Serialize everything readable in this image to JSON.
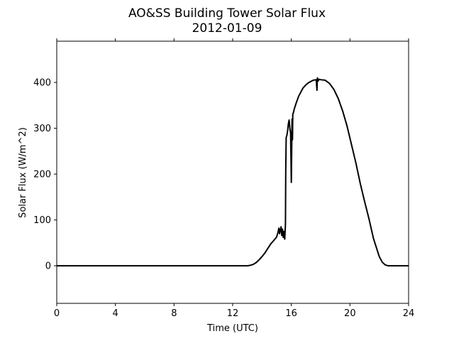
{
  "chart_data": {
    "type": "line",
    "title": "AO&SS Building Tower Solar Flux",
    "subtitle": "2012-01-09",
    "xlabel": "Time (UTC)",
    "ylabel": "Solar Flux (W/m^2)",
    "xlim": [
      0,
      24
    ],
    "ylim": [
      -82,
      490
    ],
    "xticks": [
      0,
      4,
      8,
      12,
      16,
      20,
      24
    ],
    "yticks": [
      0,
      100,
      200,
      300,
      400
    ],
    "grid": false,
    "line_color": "#000000",
    "series": [
      {
        "x": [
          0,
          1,
          2,
          3,
          4,
          5,
          6,
          7,
          8,
          9,
          10,
          11,
          12,
          13,
          13.2,
          13.4,
          13.6,
          13.8,
          14.0,
          14.2,
          14.4,
          14.6,
          14.8,
          15.0,
          15.1,
          15.15,
          15.2,
          15.25,
          15.3,
          15.35,
          15.4,
          15.45,
          15.5,
          15.55,
          15.6,
          15.62,
          15.65,
          15.7,
          15.75,
          15.8,
          15.85,
          15.9,
          15.95,
          16.0,
          16.05,
          16.08,
          16.1,
          16.15,
          16.2,
          16.3,
          16.5,
          16.8,
          17.0,
          17.2,
          17.5,
          17.7,
          17.75,
          17.78,
          17.82,
          17.9,
          18.0,
          18.3,
          18.6,
          18.9,
          19.2,
          19.5,
          19.8,
          20.1,
          20.4,
          20.7,
          21.0,
          21.3,
          21.6,
          21.8,
          22.0,
          22.2,
          22.4,
          22.6,
          22.8,
          23.0,
          23.2,
          23.5,
          24.0
        ],
        "y": [
          0,
          0,
          0,
          0,
          0,
          0,
          0,
          0,
          0,
          0,
          0,
          0,
          0,
          0,
          1,
          3,
          7,
          13,
          20,
          28,
          38,
          48,
          55,
          63,
          74,
          82,
          70,
          78,
          85,
          66,
          80,
          62,
          75,
          58,
          90,
          205,
          280,
          285,
          295,
          310,
          318,
          300,
          290,
          182,
          320,
          275,
          330,
          335,
          342,
          352,
          370,
          388,
          395,
          400,
          405,
          406,
          383,
          410,
          403,
          407,
          406,
          405,
          398,
          385,
          365,
          338,
          305,
          265,
          225,
          180,
          140,
          102,
          60,
          40,
          20,
          8,
          2,
          0,
          0,
          0,
          0,
          0,
          0
        ]
      }
    ]
  }
}
